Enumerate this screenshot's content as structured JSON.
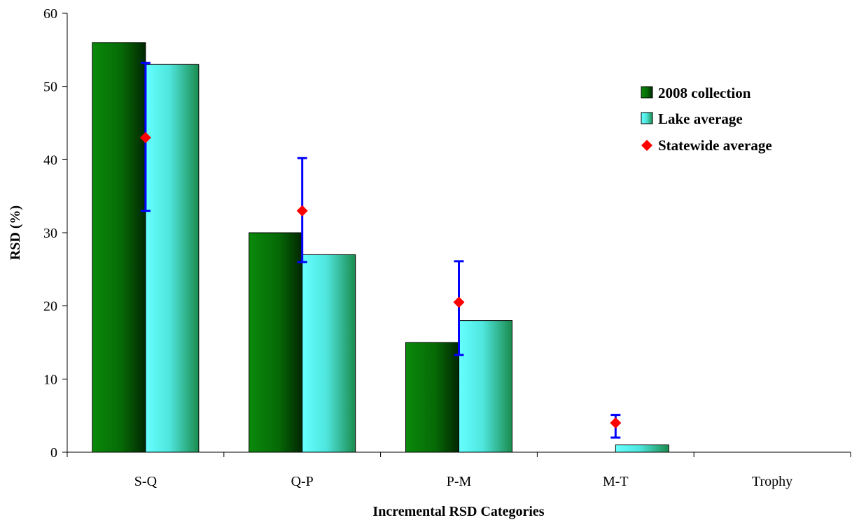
{
  "chart_data": {
    "type": "bar",
    "title": "",
    "xlabel": "Incremental RSD Categories",
    "ylabel": "RSD (%)",
    "ylim": [
      0,
      60
    ],
    "yticks": [
      0,
      10,
      20,
      30,
      40,
      50,
      60
    ],
    "categories": [
      "S-Q",
      "Q-P",
      "P-M",
      "M-T",
      "Trophy"
    ],
    "series": [
      {
        "name": "2008 collection",
        "kind": "bar",
        "color": "#0a7d0a",
        "values": [
          56,
          30,
          15,
          0,
          0
        ]
      },
      {
        "name": "Lake average",
        "kind": "bar",
        "color": "#5ef2f0",
        "values": [
          53,
          27,
          18,
          1,
          0
        ]
      },
      {
        "name": "Statewide average",
        "kind": "marker",
        "color": "#ff0000",
        "values": [
          43,
          33,
          20.5,
          4,
          null
        ],
        "error_low": [
          33,
          26,
          13.3,
          2,
          null
        ],
        "error_high": [
          53.2,
          40.2,
          26.1,
          5.1,
          null
        ],
        "error_color": "#0000ff"
      }
    ],
    "grid": false,
    "legend_position": "top-right"
  }
}
